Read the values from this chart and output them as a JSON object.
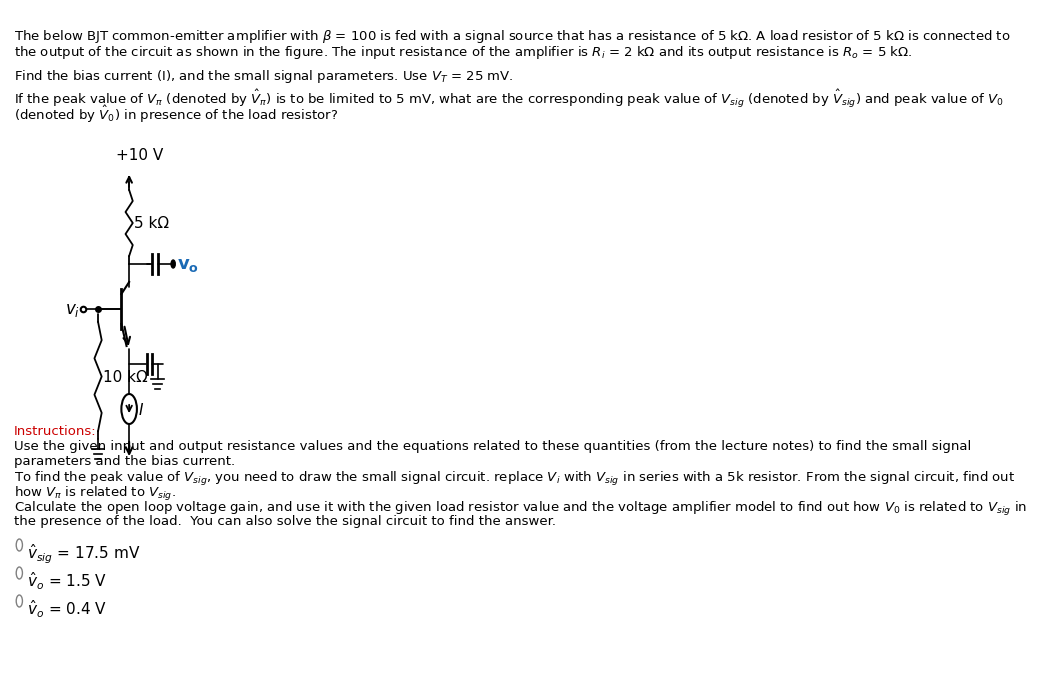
{
  "title_text": "The below BJT common-emitter amplifier with β = 100 is fed with a signal source that has a resistance of 5 kΩ. A load resistor of 5 kΩ is connected to\nthe output of the circuit as shown in the figure. The input resistance of the amplifier is R_i = 2 kΩ and its output resistance is R_o = 5 kΩ.",
  "line2": "Find the bias current (I), and the small signal parameters. Use V_T = 25 mV.",
  "line3": "If the peak value of V_π (denoted by ˆV_π) is to be limited to 5 mV, what are the corresponding peak value of V_sig (denoted by ˆV_sig ) and peak value of V_0",
  "line4": "(denoted by ˆV_0) in presence of the load resistor?",
  "instructions_title": "Instructions:",
  "instructions_body": "Use the given input and output resistance values and the equations related to these quantities (from the lecture notes) to find the small signal\nparameters and the bias current.\nTo find the peak value of V_sig , you need to draw the small signal circuit. replace V_i with V_sig in series with a 5k resistor. From the signal circuit, find out\nhow V_π is related to V_sig.\nCalculate the open loop voltage gain, and use it with the given load resistor value and the voltage amplifier model to find out how V_0 is related to V_sig in\nthe presence of the load.  You can also solve the signal circuit to find the answer.",
  "answer1": "ˆV_sig = 17.5 mV",
  "answer2": "ˆV_o = 1.5 V",
  "answer3": "ˆV_o = 0.4 V",
  "vcc_label": "+10 V",
  "rc_label": "5 kΩ",
  "rb_label": "10 kΩ",
  "vo_label": "v_o",
  "current_label": "I",
  "vi_label": "v_i",
  "bg_color": "#ffffff",
  "text_color": "#000000",
  "instructions_color": "#cc0000",
  "vo_color": "#1a6ab5",
  "circuit_color": "#000000"
}
